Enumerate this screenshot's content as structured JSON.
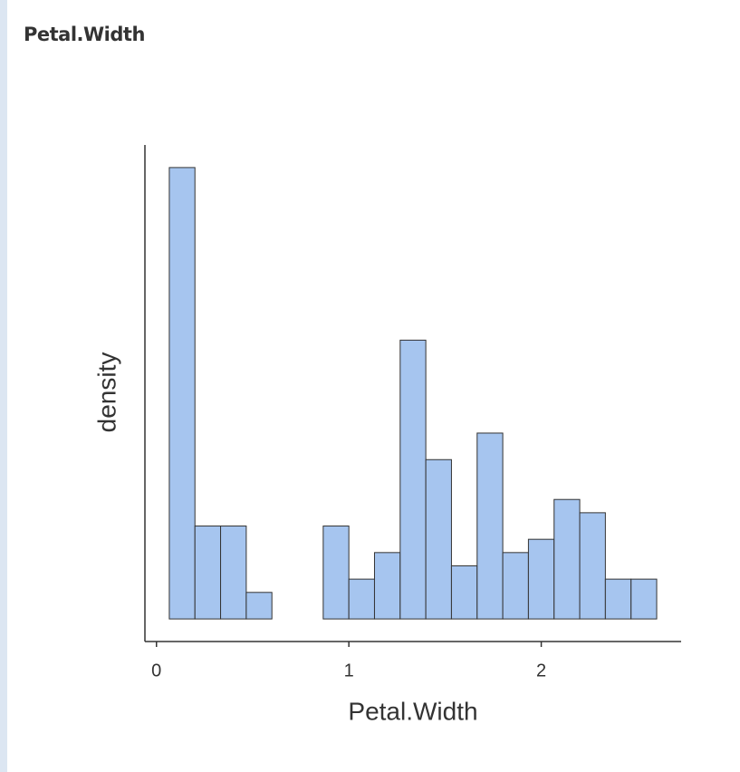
{
  "heading": "Petal.Width",
  "chart_data": {
    "type": "histogram",
    "xlabel": "Petal.Width",
    "ylabel": "density",
    "bins": [
      0.0667,
      0.2,
      0.3333,
      0.4667,
      0.6,
      0.7333,
      0.8667,
      1.0,
      1.1333,
      1.2667,
      1.4,
      1.5333,
      1.6667,
      1.8,
      1.9333,
      2.0667,
      2.2,
      2.3333,
      2.4667,
      2.6
    ],
    "values": [
      1.7,
      0.35,
      0.35,
      0.1,
      0,
      0,
      0.35,
      0.15,
      0.25,
      1.05,
      0.6,
      0.2,
      0.7,
      0.25,
      0.3,
      0.45,
      0.4,
      0.15,
      0.15
    ],
    "color": "#a6c5ef",
    "xlim": [
      -0.06,
      2.727
    ],
    "xticks": [
      0,
      1,
      2
    ],
    "ylim": [
      -0.085,
      1.785
    ]
  }
}
